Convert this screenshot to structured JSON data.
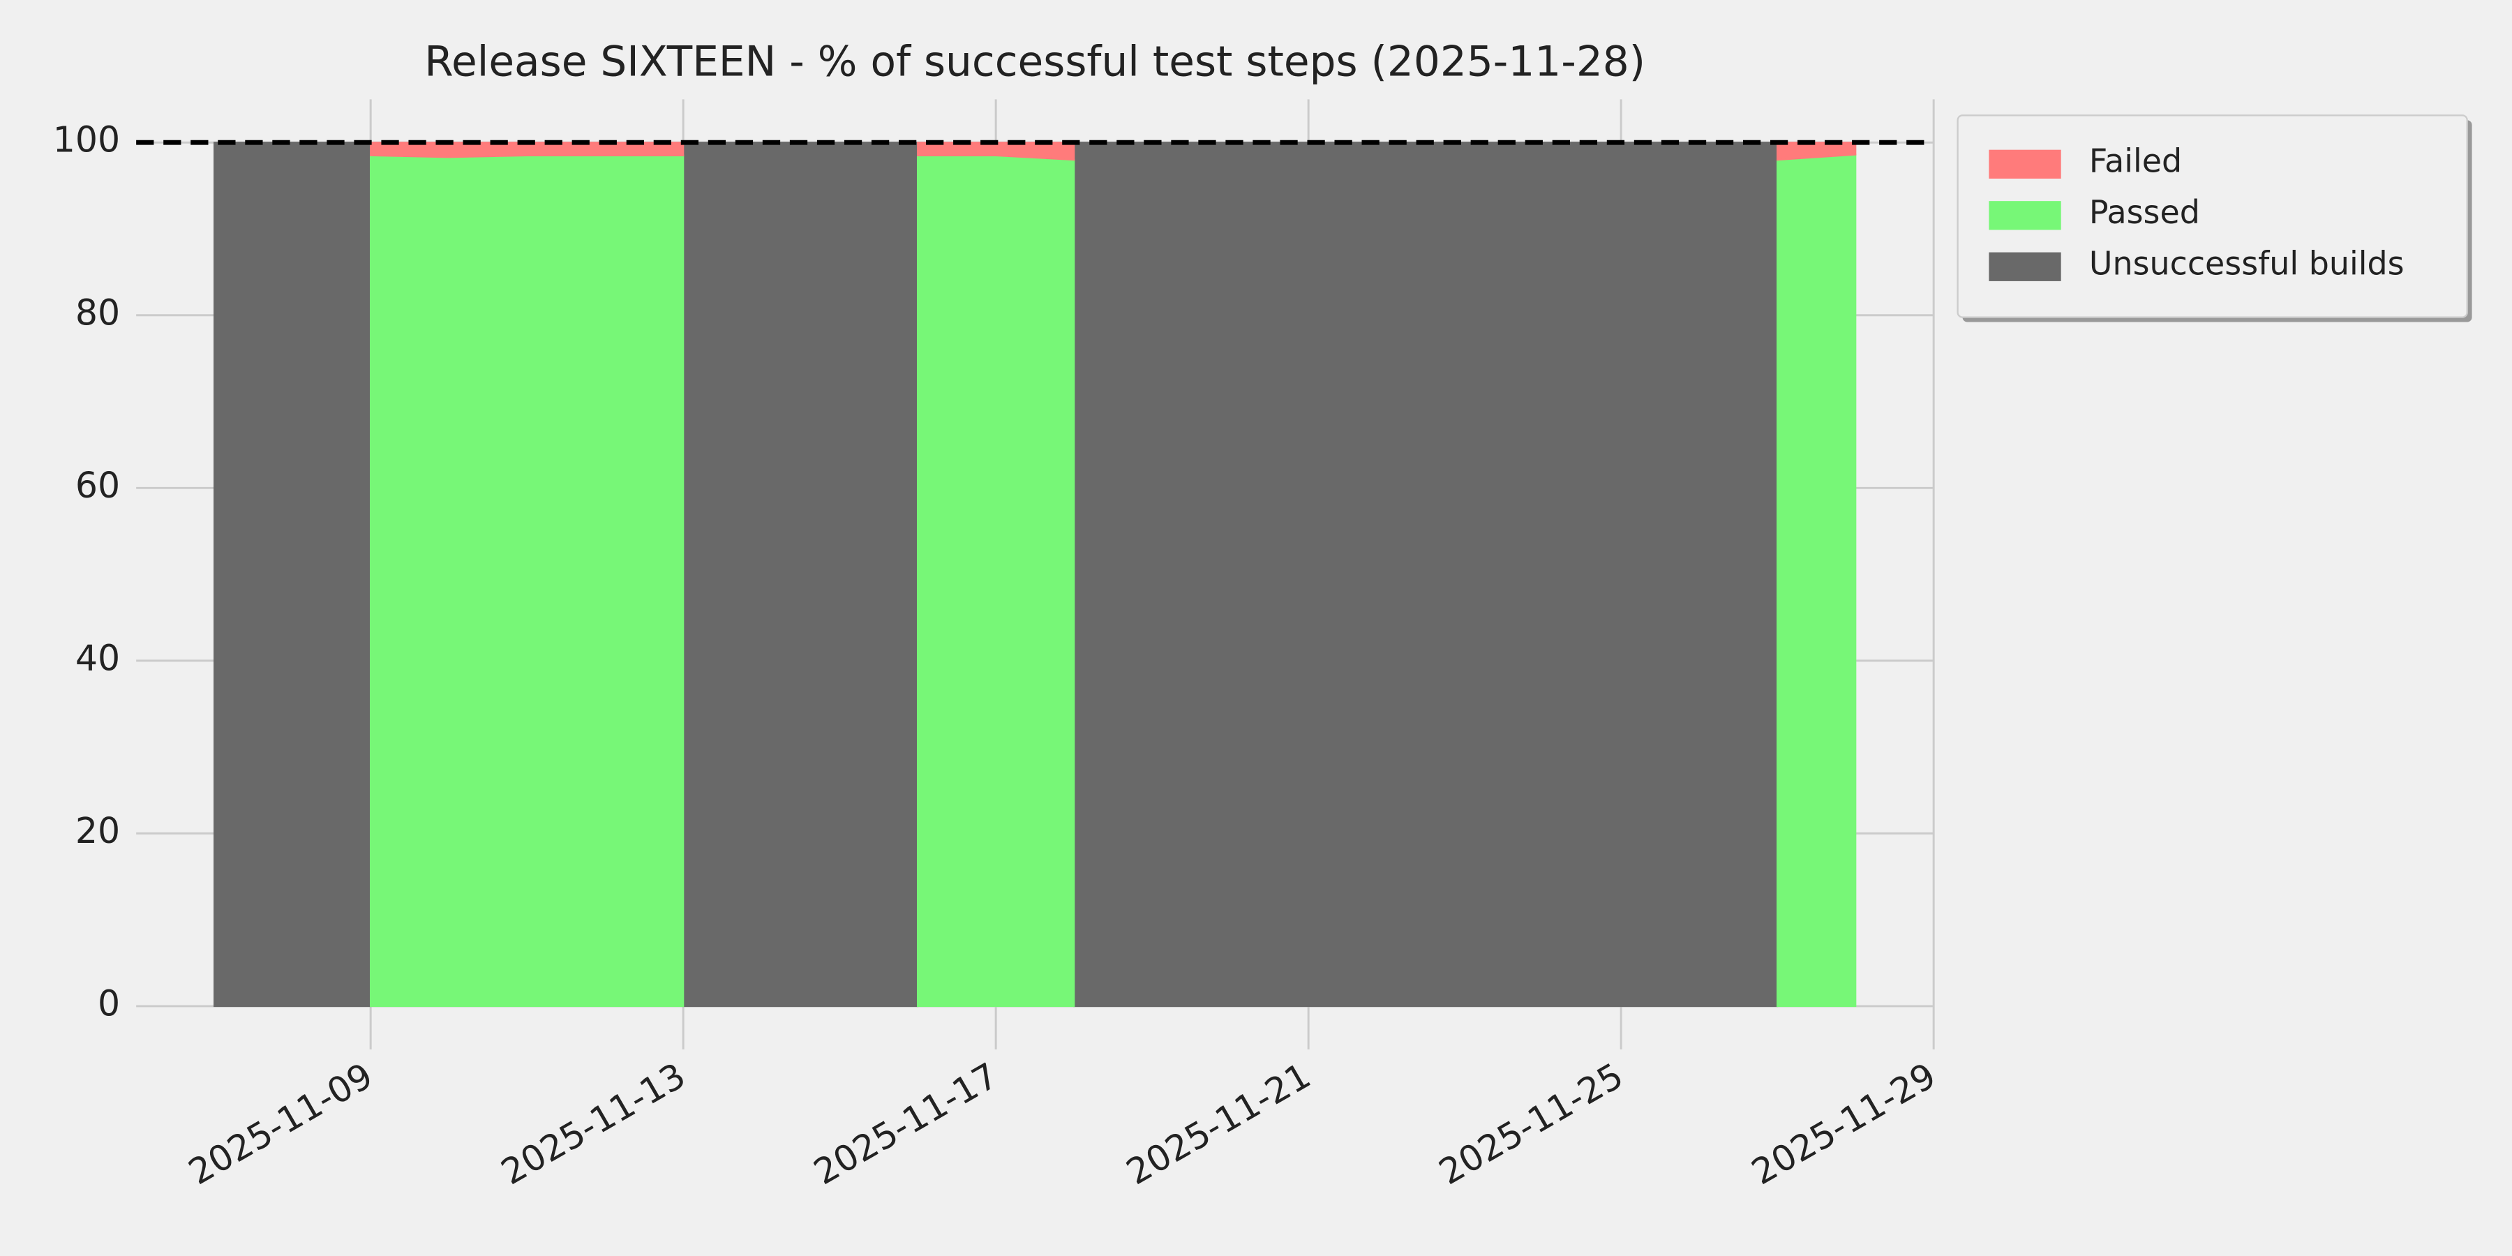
{
  "chart_data": {
    "type": "area",
    "stacked": true,
    "title": "Release SIXTEEN - % of successful test steps (2025-11-28)",
    "x": [
      "2025-11-07",
      "2025-11-08",
      "2025-11-09",
      "2025-11-10",
      "2025-11-11",
      "2025-11-12",
      "2025-11-13",
      "2025-11-14",
      "2025-11-15",
      "2025-11-16",
      "2025-11-17",
      "2025-11-18",
      "2025-11-19",
      "2025-11-20",
      "2025-11-21",
      "2025-11-22",
      "2025-11-23",
      "2025-11-24",
      "2025-11-25",
      "2025-11-26",
      "2025-11-27",
      "2025-11-28"
    ],
    "series": [
      {
        "name": "Unsuccessful builds",
        "color": "#696969",
        "stack": false,
        "values": [
          100,
          100,
          100,
          null,
          null,
          null,
          100,
          100,
          100,
          100,
          null,
          100,
          100,
          100,
          100,
          100,
          100,
          100,
          100,
          100,
          100,
          null
        ]
      },
      {
        "name": "Passed",
        "color": "#77f777",
        "stack": true,
        "values": [
          null,
          null,
          98.5,
          98.3,
          98.5,
          98.5,
          98.5,
          null,
          null,
          98.5,
          98.5,
          98.0,
          null,
          null,
          null,
          null,
          null,
          null,
          null,
          null,
          98.0,
          98.6
        ]
      },
      {
        "name": "Failed",
        "color": "#ff7b7b",
        "stack": true,
        "values": [
          null,
          null,
          1.5,
          1.7,
          1.5,
          1.5,
          1.5,
          null,
          null,
          1.5,
          1.5,
          2.0,
          null,
          null,
          null,
          null,
          null,
          null,
          null,
          null,
          2.0,
          1.4
        ]
      }
    ],
    "hline": 100,
    "xlim": [
      "2025-11-06",
      "2025-11-29"
    ],
    "xticks": [
      "2025-11-09",
      "2025-11-13",
      "2025-11-17",
      "2025-11-21",
      "2025-11-25",
      "2025-11-29"
    ],
    "ylim": [
      -5,
      105
    ],
    "yticks": [
      0,
      20,
      40,
      60,
      80,
      100
    ],
    "grid": true,
    "legend": "outside upper right",
    "legend_order": [
      2,
      1,
      0
    ]
  }
}
